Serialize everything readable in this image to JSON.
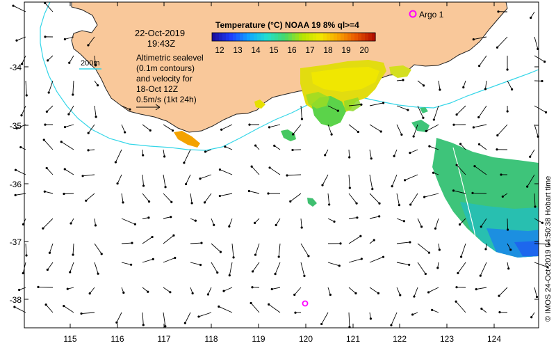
{
  "map": {
    "date": "22-Oct-2019",
    "time": "19:43Z",
    "legend_title": "Temperature (°C) NOAA 19 8% ql>=4",
    "legend_ticks": [
      "12",
      "13",
      "14",
      "15",
      "16",
      "17",
      "18",
      "19",
      "20"
    ],
    "contour_label": "200m",
    "info_lines": [
      "Altimetric sealevel",
      "(0.1m contours)",
      "and velocity for",
      "18-Oct 12Z",
      "0.5m/s (1kt 24h)"
    ],
    "argo_label": "Argo 1",
    "credit": "© IMOS 24-Oct-2019 04:50:38 Hobart time",
    "lat_labels": [
      "-34",
      "-35",
      "-36",
      "-37",
      "-38"
    ],
    "lon_labels": [
      "115",
      "116",
      "117",
      "118",
      "119",
      "120",
      "121",
      "122",
      "123",
      "124"
    ]
  },
  "colors": {
    "land": "#f9c89a",
    "shelf_contour": "#34d6e8",
    "argo_marker": "#ff00ff",
    "colormap": [
      "#1a0fa0",
      "#1f40ff",
      "#10a8ff",
      "#22dfd0",
      "#45d86b",
      "#b6e400",
      "#f2e800",
      "#f9a400",
      "#e95700",
      "#b41000"
    ]
  }
}
